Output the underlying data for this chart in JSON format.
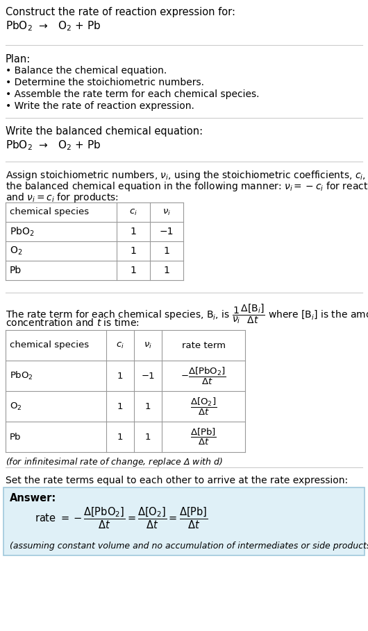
{
  "title_line1": "Construct the rate of reaction expression for:",
  "title_line2": "PbO$_2$  →   O$_2$ + Pb",
  "plan_header": "Plan:",
  "plan_items": [
    "• Balance the chemical equation.",
    "• Determine the stoichiometric numbers.",
    "• Assemble the rate term for each chemical species.",
    "• Write the rate of reaction expression."
  ],
  "balanced_header": "Write the balanced chemical equation:",
  "balanced_eq": "PbO$_2$  →   O$_2$ + Pb",
  "assign_text1": "Assign stoichiometric numbers, $\\nu_i$, using the stoichiometric coefficients, $c_i$, from",
  "assign_text2": "the balanced chemical equation in the following manner: $\\nu_i = -c_i$ for reactants",
  "assign_text3": "and $\\nu_i = c_i$ for products:",
  "table1_headers": [
    "chemical species",
    "$c_i$",
    "$\\nu_i$"
  ],
  "table1_rows": [
    [
      "PbO$_2$",
      "1",
      "−1"
    ],
    [
      "O$_2$",
      "1",
      "1"
    ],
    [
      "Pb",
      "1",
      "1"
    ]
  ],
  "rate_text1": "The rate term for each chemical species, B$_i$, is $\\dfrac{1}{\\nu_i}\\dfrac{\\Delta[\\mathrm{B}_i]}{\\Delta t}$ where [B$_i$] is the amount",
  "rate_text2": "concentration and $t$ is time:",
  "table2_headers": [
    "chemical species",
    "$c_i$",
    "$\\nu_i$",
    "rate term"
  ],
  "table2_rows": [
    [
      "PbO$_2$",
      "1",
      "−1",
      "$-\\dfrac{\\Delta[\\mathrm{PbO_2}]}{\\Delta t}$"
    ],
    [
      "O$_2$",
      "1",
      "1",
      "$\\dfrac{\\Delta[\\mathrm{O_2}]}{\\Delta t}$"
    ],
    [
      "Pb",
      "1",
      "1",
      "$\\dfrac{\\Delta[\\mathrm{Pb}]}{\\Delta t}$"
    ]
  ],
  "infinitesimal_note": "(for infinitesimal rate of change, replace Δ with $d$)",
  "set_text": "Set the rate terms equal to each other to arrive at the rate expression:",
  "answer_label": "Answer:",
  "answer_eq": "rate $= -\\dfrac{\\Delta[\\mathrm{PbO_2}]}{\\Delta t} = \\dfrac{\\Delta[\\mathrm{O_2}]}{\\Delta t} = \\dfrac{\\Delta[\\mathrm{Pb}]}{\\Delta t}$",
  "answer_note": "(assuming constant volume and no accumulation of intermediates or side products)",
  "bg_color": "#ffffff",
  "answer_box_color": "#dff0f7",
  "table_line_color": "#999999",
  "text_color": "#000000",
  "answer_box_border": "#a0c8dc"
}
